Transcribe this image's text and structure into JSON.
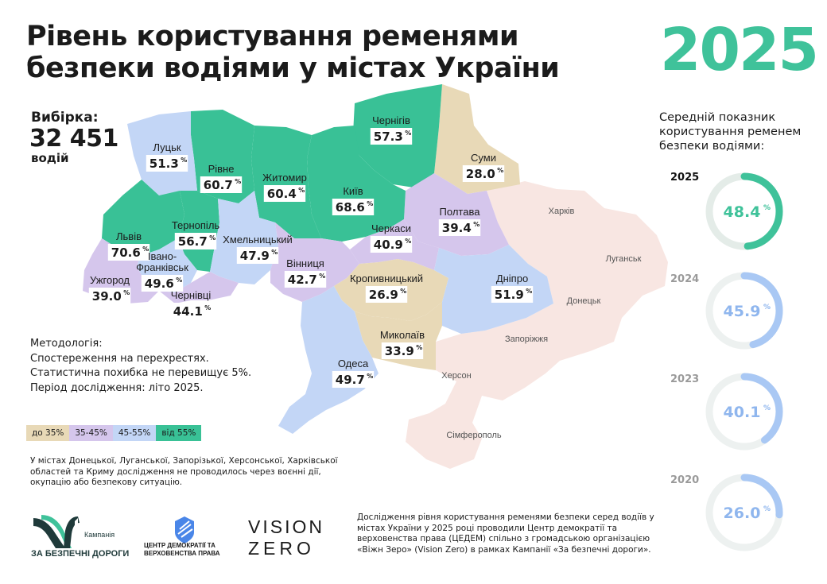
{
  "title": "Рівень користування ременями безпеки водіями у містах України",
  "year": "2025",
  "sample": {
    "label": "Вибірка:",
    "value": "32 451",
    "unit": "водій"
  },
  "methodology": [
    "Методологія:",
    "Спостереження на перехрестях.",
    "Статистична похибка не перевищує 5%.",
    "Період дослідження: літо 2025."
  ],
  "legend": [
    {
      "label": "до 35%",
      "color": "#e8d9b7"
    },
    {
      "label": "35-45%",
      "color": "#d5c6ec"
    },
    {
      "label": "45-55%",
      "color": "#c3d6f6"
    },
    {
      "label": "від 55%",
      "color": "#39c196"
    }
  ],
  "note": "У містах Донецької, Луганської, Запорізької, Херсонської, Харківської областей та Криму дослідження не проводилось через воєнні дії, окупацію або безпекову ситуацію.",
  "footer": "Дослідження рівня користування ременями безпеки серед водіїв у містах України у 2025 році проводили Центр демократії та верховенства права (ЦЕДЕМ) спільно з громадською організацією «Віжн Зеро» (Vision Zero) в рамках Кампанії «За безпечні дороги».",
  "average": {
    "title": "Середній показник користування ременем безпеки водіями:",
    "rings": [
      {
        "year": "2025",
        "value": "48.4",
        "fraction": 0.484,
        "color": "#3fc29a",
        "track": "#e4ece8",
        "text_color": "#3fc29a",
        "year_color": "#111111"
      },
      {
        "year": "2024",
        "value": "45.9",
        "fraction": 0.459,
        "color": "#a9c8f4",
        "track": "#edf1f0",
        "text_color": "#8fb6ee",
        "year_color": "#9a9a9a"
      },
      {
        "year": "2023",
        "value": "40.1",
        "fraction": 0.401,
        "color": "#a9c8f4",
        "track": "#edf1f0",
        "text_color": "#8fb6ee",
        "year_color": "#9a9a9a"
      },
      {
        "year": "2020",
        "value": "26.0",
        "fraction": 0.26,
        "color": "#a9c8f4",
        "track": "#edf1f0",
        "text_color": "#8fb6ee",
        "year_color": "#9a9a9a"
      }
    ]
  },
  "chart_data": {
    "type": "table",
    "title": "Рівень користування ременями безпеки водіями у містах України",
    "cities": [
      {
        "name": "Чернігів",
        "value": 57.3
      },
      {
        "name": "Суми",
        "value": 28.0
      },
      {
        "name": "Луцьк",
        "value": 51.3
      },
      {
        "name": "Рівне",
        "value": 60.7
      },
      {
        "name": "Житомир",
        "value": 60.4
      },
      {
        "name": "Київ",
        "value": 68.6
      },
      {
        "name": "Львів",
        "value": 70.6
      },
      {
        "name": "Тернопіль",
        "value": 56.7
      },
      {
        "name": "Хмельницький",
        "value": 47.9
      },
      {
        "name": "Черкаси",
        "value": 40.9
      },
      {
        "name": "Полтава",
        "value": 39.4
      },
      {
        "name": "Івано-Франківськ",
        "value": 49.6
      },
      {
        "name": "Ужгород",
        "value": 39.0
      },
      {
        "name": "Чернівці",
        "value": 44.1
      },
      {
        "name": "Вінниця",
        "value": 42.7
      },
      {
        "name": "Кропивницький",
        "value": 26.9
      },
      {
        "name": "Дніпро",
        "value": 51.9
      },
      {
        "name": "Миколаїв",
        "value": 33.9
      },
      {
        "name": "Одеса",
        "value": 49.7
      }
    ],
    "not_surveyed": [
      "Харків",
      "Луганськ",
      "Донецьк",
      "Запоріжжя",
      "Херсон",
      "Сімферополь"
    ],
    "average_by_year": {
      "x": [
        "2025",
        "2024",
        "2023",
        "2020"
      ],
      "y": [
        48.4,
        45.9,
        40.1,
        26.0
      ]
    }
  },
  "percent_sign": "%",
  "logos": {
    "campaign_small": "Кампанія",
    "campaign_main": "ЗА БЕЗПЕЧНІ ДОРОГИ",
    "cedem_1": "ЦЕНТР ДЕМОКРАТІЇ ТА",
    "cedem_2": "ВЕРХОВЕНСТВА ПРАВА",
    "vz_1": "VISION",
    "vz_2": "ZERO"
  }
}
